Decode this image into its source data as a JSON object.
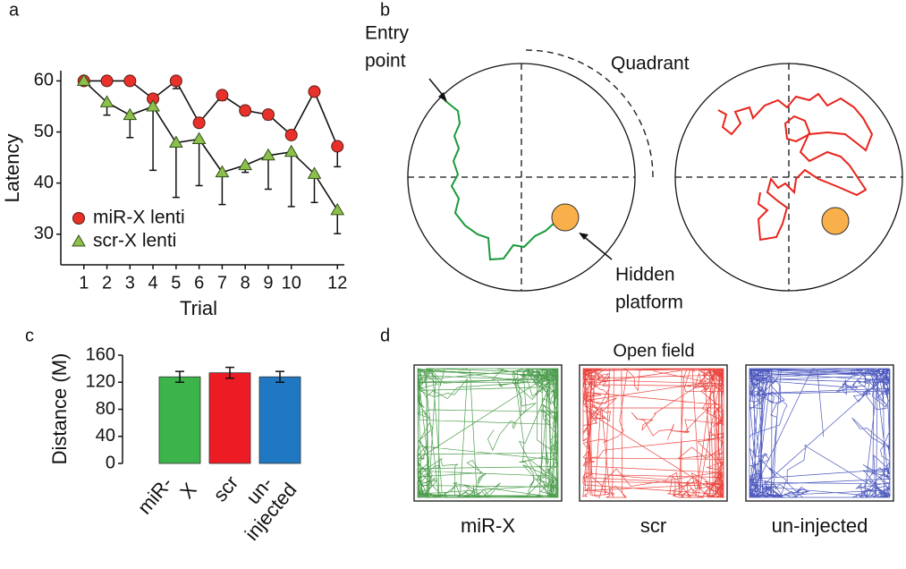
{
  "chart_data": [
    {
      "type": "line",
      "panel": "a",
      "xlabel": "Trial",
      "ylabel": "Latency",
      "x": [
        1,
        2,
        3,
        4,
        5,
        6,
        7,
        8,
        9,
        10,
        11,
        12
      ],
      "xlim": [
        0,
        12.3
      ],
      "xticks": [
        1,
        2,
        3,
        4,
        5,
        6,
        7,
        8,
        9,
        10,
        12
      ],
      "ylim": [
        24,
        62
      ],
      "yticks": [
        30,
        40,
        50,
        60
      ],
      "legend": "lower left",
      "series": [
        {
          "name": "miR-X lenti",
          "color": "#e8312a",
          "marker": "circle",
          "values": [
            60,
            60,
            60,
            56.5,
            60,
            51.8,
            57.2,
            54.2,
            53.4,
            49.4,
            57.9,
            47.2
          ],
          "errors": [
            0,
            0,
            0,
            0,
            1.5,
            0,
            1,
            1,
            1,
            0,
            0,
            4
          ]
        },
        {
          "name": "scr-X lenti",
          "color": "#8cc04b",
          "marker": "triangle",
          "values": [
            60,
            55.8,
            53.3,
            55,
            47.9,
            48.6,
            42.1,
            43.5,
            45.4,
            46.1,
            41.8,
            34.7
          ],
          "errors": [
            0,
            2.5,
            4.4,
            12.5,
            10.7,
            9.1,
            6.3,
            1.4,
            6.6,
            10.7,
            5.6,
            4.6
          ]
        }
      ]
    },
    {
      "type": "bar",
      "panel": "c",
      "ylabel": "Distance (M)",
      "categories": [
        "miR-X",
        "scr",
        "un-injected"
      ],
      "values": [
        128,
        134,
        128
      ],
      "errors": [
        8,
        8,
        8
      ],
      "colors": [
        "#3cb44a",
        "#ed1c24",
        "#1f78c1"
      ],
      "ylim": [
        0,
        160
      ],
      "yticks": [
        0,
        40,
        80,
        120,
        160
      ]
    }
  ],
  "maze": {
    "panel": "b",
    "entry_label": [
      "Entry",
      "point"
    ],
    "quadrant_label": "Quadrant",
    "platform_label": [
      "Hidden",
      "platform"
    ]
  },
  "open_field": {
    "panel": "d",
    "title": "Open field",
    "labels": [
      "miR-X",
      "scr",
      "un-injected"
    ],
    "colors": [
      "#2e8b2e",
      "#e8231c",
      "#2b3bb0"
    ]
  }
}
